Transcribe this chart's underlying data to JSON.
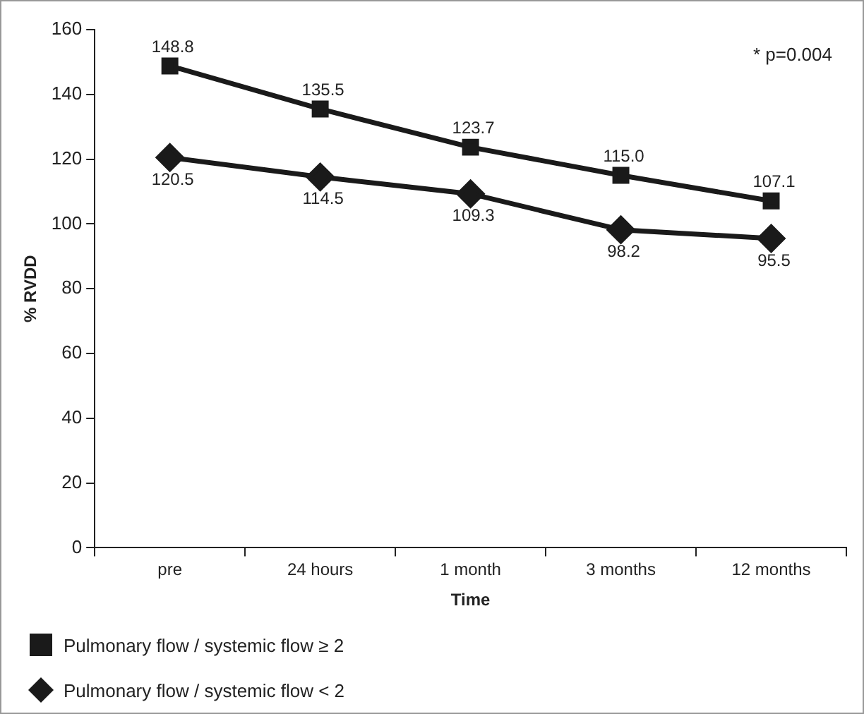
{
  "chart_data": {
    "type": "line",
    "xlabel": "Time",
    "ylabel": "% RVDD",
    "categories": [
      "pre",
      "24 hours",
      "1 month",
      "3 months",
      "12 months"
    ],
    "series": [
      {
        "name": "Pulmonary flow / systemic flow ≥ 2",
        "color": "#1a1a1a",
        "marker": "square",
        "values": [
          148.8,
          135.5,
          123.7,
          115.0,
          107.1
        ],
        "value_labels": [
          "148.8",
          "135.5",
          "123.7",
          "115.0",
          "107.1"
        ]
      },
      {
        "name": "Pulmonary flow / systemic flow < 2",
        "color": "#1a1a1a",
        "marker": "diamond",
        "values": [
          120.5,
          114.5,
          109.3,
          98.2,
          95.5
        ],
        "value_labels": [
          "120.5",
          "114.5",
          "109.3",
          "98.2",
          "95.5"
        ]
      }
    ],
    "ylim": [
      0,
      160
    ],
    "yticks": [
      0,
      20,
      40,
      60,
      80,
      100,
      120,
      140,
      160
    ],
    "grid": false,
    "legend": "bottom left",
    "annotations": [
      "* p=0.004"
    ]
  }
}
